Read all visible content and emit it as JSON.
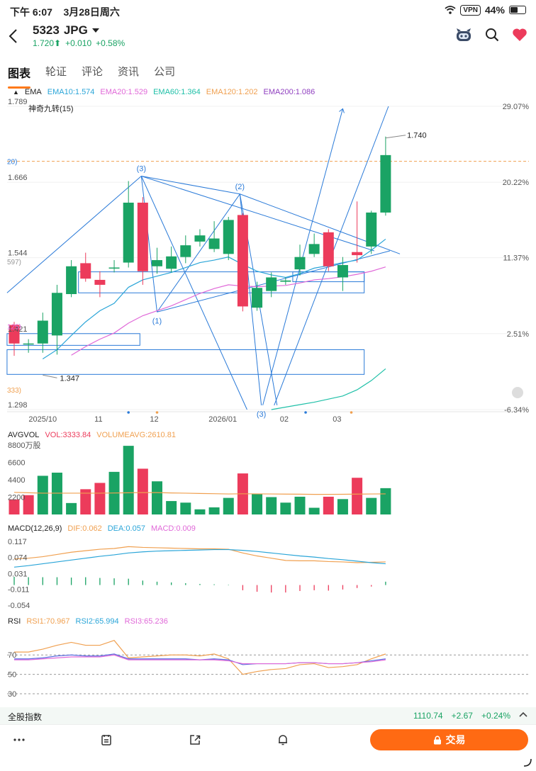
{
  "status": {
    "time": "下午 6:07",
    "date": "3月28日周六",
    "vpn": "VPN",
    "battery": "44%",
    "battery_level": 0.44
  },
  "header": {
    "symbol": "5323",
    "name": "JPG",
    "price": "1.720",
    "arrow": "⬆",
    "change": "+0.010",
    "change_pct": "+0.58%"
  },
  "tabs": [
    "图表",
    "轮证",
    "评论",
    "资讯",
    "公司"
  ],
  "ema_legend": {
    "title": "EMA",
    "items": [
      {
        "label": "EMA10:1.574",
        "color": "#2aa5d8"
      },
      {
        "label": "EMA20:1.529",
        "color": "#e068d8"
      },
      {
        "label": "EMA60:1.364",
        "color": "#20c0a8"
      },
      {
        "label": "EMA120:1.202",
        "color": "#f0a050"
      },
      {
        "label": "EMA200:1.086",
        "color": "#9040c0"
      }
    ]
  },
  "overlay_label": "神奇九转(15)",
  "colors": {
    "up": "#1aa364",
    "down": "#ec3b5b",
    "line": "#2a7ad8",
    "ema10": "#2aa5d8",
    "ema20": "#e068d8",
    "ema60": "#20c0a8",
    "vol_avg": "#f0a050",
    "dif": "#f0a050",
    "dea": "#2aa5d8",
    "macd": "#e068d8",
    "rsi1": "#f0a050",
    "rsi2": "#5a6ee0",
    "rsi3": "#e068d8"
  },
  "chart_data": [
    {
      "type": "candlestick",
      "name": "price",
      "y_ticks": [
        "1.789",
        "1.666",
        "1.544",
        "1.421",
        "1.298"
      ],
      "y_tick_values": [
        1.789,
        1.666,
        1.544,
        1.421,
        1.298
      ],
      "right_ticks": [
        "29.07%",
        "20.22%",
        "11.37%",
        "2.51%",
        "-6.34%"
      ],
      "ylim": [
        1.298,
        1.789
      ],
      "x_labels": [
        "2025/10",
        "11",
        "12",
        "2026/01",
        "02",
        "03"
      ],
      "x_label_index": [
        2.0,
        5.9,
        9.8,
        14.6,
        18.9,
        22.6
      ],
      "partial_left_labels": [
        "20)",
        "597)",
        "125)",
        "333)"
      ],
      "partial_left_values": [
        1.7,
        1.538,
        1.433,
        1.33
      ],
      "candles": [
        {
          "o": 1.435,
          "c": 1.405,
          "h": 1.44,
          "l": 1.385
        },
        {
          "o": 1.405,
          "c": 1.405,
          "h": 1.412,
          "l": 1.39
        },
        {
          "o": 1.405,
          "c": 1.442,
          "h": 1.455,
          "l": 1.39
        },
        {
          "o": 1.418,
          "c": 1.487,
          "h": 1.5,
          "l": 1.387
        },
        {
          "o": 1.485,
          "c": 1.53,
          "h": 1.54,
          "l": 1.48
        },
        {
          "o": 1.535,
          "c": 1.51,
          "h": 1.552,
          "l": 1.505
        },
        {
          "o": 1.508,
          "c": 1.5,
          "h": 1.522,
          "l": 1.48
        },
        {
          "o": 1.528,
          "c": 1.528,
          "h": 1.54,
          "l": 1.52
        },
        {
          "o": 1.536,
          "c": 1.633,
          "h": 1.668,
          "l": 1.528
        },
        {
          "o": 1.633,
          "c": 1.522,
          "h": 1.642,
          "l": 1.5
        },
        {
          "o": 1.53,
          "c": 1.54,
          "h": 1.56,
          "l": 1.518
        },
        {
          "o": 1.526,
          "c": 1.546,
          "h": 1.562,
          "l": 1.52
        },
        {
          "o": 1.545,
          "c": 1.564,
          "h": 1.58,
          "l": 1.535
        },
        {
          "o": 1.57,
          "c": 1.58,
          "h": 1.59,
          "l": 1.562
        },
        {
          "o": 1.558,
          "c": 1.575,
          "h": 1.603,
          "l": 1.553
        },
        {
          "o": 1.55,
          "c": 1.605,
          "h": 1.61,
          "l": 1.54
        },
        {
          "o": 1.613,
          "c": 1.465,
          "h": 1.616,
          "l": 1.457
        },
        {
          "o": 1.463,
          "c": 1.495,
          "h": 1.505,
          "l": 1.458
        },
        {
          "o": 1.49,
          "c": 1.512,
          "h": 1.52,
          "l": 1.48
        },
        {
          "o": 1.505,
          "c": 1.507,
          "h": 1.512,
          "l": 1.5
        },
        {
          "o": 1.525,
          "c": 1.545,
          "h": 1.565,
          "l": 1.515
        },
        {
          "o": 1.55,
          "c": 1.566,
          "h": 1.583,
          "l": 1.545
        },
        {
          "o": 1.585,
          "c": 1.53,
          "h": 1.59,
          "l": 1.522
        },
        {
          "o": 1.512,
          "c": 1.532,
          "h": 1.545,
          "l": 1.49
        },
        {
          "o": 1.553,
          "c": 1.548,
          "h": 1.635,
          "l": 1.536
        },
        {
          "o": 1.562,
          "c": 1.617,
          "h": 1.62,
          "l": 1.55
        },
        {
          "o": 1.617,
          "c": 1.71,
          "h": 1.74,
          "l": 1.612
        }
      ],
      "ema10": [
        null,
        null,
        1.38,
        1.395,
        1.418,
        1.44,
        1.458,
        1.47,
        1.496,
        1.508,
        1.514,
        1.52,
        1.528,
        1.536,
        1.54,
        1.545,
        1.533,
        1.522,
        1.516,
        1.512,
        1.518,
        1.527,
        1.531,
        1.536,
        1.54,
        1.556,
        1.574
      ],
      "ema20": [
        null,
        null,
        null,
        null,
        1.386,
        1.4,
        1.412,
        1.422,
        1.438,
        1.45,
        1.458,
        1.466,
        1.476,
        1.486,
        1.494,
        1.5,
        1.498,
        1.497,
        1.498,
        1.499,
        1.503,
        1.508,
        1.51,
        1.513,
        1.517,
        1.522,
        1.529
      ],
      "ema60": [
        null,
        null,
        null,
        null,
        null,
        null,
        null,
        null,
        null,
        null,
        null,
        null,
        null,
        null,
        null,
        null,
        null,
        null,
        1.298,
        1.302,
        1.306,
        1.31,
        1.315,
        1.32,
        1.33,
        1.345,
        1.364
      ],
      "annotations": [
        {
          "label": "(3)",
          "value": 1.676,
          "index": 8.9
        },
        {
          "label": "(2)",
          "value": 1.647,
          "index": 15.8
        },
        {
          "label": "(1)",
          "value": 1.456,
          "index": 10.0
        },
        {
          "label": "(3)",
          "value": 1.305,
          "index": 17.3
        },
        {
          "label": "1.740",
          "value": 1.74,
          "index": 27.6
        },
        {
          "label": "1.347",
          "value": 1.347,
          "index": 3.2
        }
      ],
      "reference_line": 1.7
    },
    {
      "type": "bar",
      "name": "AVGVOL",
      "legend": {
        "title": "AVGVOL",
        "vol": "VOL:3333.84",
        "avg": "VOLUMEAVG:2610.81"
      },
      "y_ticks": [
        "8800万股",
        "6600",
        "4400",
        "2200"
      ],
      "y_tick_values": [
        8800,
        6600,
        4400,
        2200
      ],
      "ylim": [
        0,
        8800
      ],
      "values": [
        1900,
        2450,
        4900,
        5300,
        1450,
        3200,
        4000,
        5400,
        8700,
        5800,
        4200,
        1700,
        1500,
        650,
        900,
        2100,
        5200,
        2600,
        2200,
        1500,
        2250,
        850,
        2250,
        1950,
        4650,
        2100,
        3334
      ],
      "up": [
        false,
        false,
        true,
        true,
        true,
        false,
        false,
        true,
        true,
        false,
        true,
        true,
        true,
        true,
        true,
        true,
        false,
        true,
        true,
        true,
        true,
        true,
        false,
        true,
        false,
        true,
        true
      ],
      "avg": [
        2800,
        2750,
        2700,
        2700,
        2700,
        2700,
        2700,
        2720,
        2750,
        2780,
        2770,
        2730,
        2700,
        2660,
        2630,
        2600,
        2620,
        2610,
        2600,
        2580,
        2570,
        2550,
        2550,
        2560,
        2580,
        2600,
        2611
      ]
    },
    {
      "type": "line",
      "name": "MACD",
      "legend": {
        "title": "MACD(12,26,9)",
        "dif": "DIF:0.062",
        "dea": "DEA:0.057",
        "macd": "MACD:0.009"
      },
      "y_ticks": [
        "0.117",
        "0.074",
        "0.031",
        "-0.011",
        "-0.054"
      ],
      "y_tick_values": [
        0.117,
        0.074,
        0.031,
        -0.011,
        -0.054
      ],
      "ylim": [
        -0.054,
        0.117
      ],
      "dif": [
        0.07,
        0.072,
        0.076,
        0.082,
        0.088,
        0.092,
        0.096,
        0.098,
        0.103,
        0.101,
        0.1,
        0.099,
        0.098,
        0.097,
        0.097,
        0.096,
        0.086,
        0.078,
        0.072,
        0.066,
        0.065,
        0.065,
        0.063,
        0.062,
        0.06,
        0.061,
        0.062
      ],
      "dea": [
        0.048,
        0.052,
        0.057,
        0.062,
        0.067,
        0.072,
        0.077,
        0.081,
        0.086,
        0.089,
        0.091,
        0.092,
        0.093,
        0.094,
        0.095,
        0.095,
        0.093,
        0.09,
        0.086,
        0.082,
        0.078,
        0.075,
        0.071,
        0.068,
        0.064,
        0.06,
        0.057
      ],
      "macd": [
        0.022,
        0.021,
        0.021,
        0.021,
        0.02,
        0.021,
        0.019,
        0.018,
        0.017,
        0.012,
        0.009,
        0.007,
        0.005,
        0.003,
        0.002,
        0.001,
        -0.014,
        -0.018,
        -0.02,
        -0.02,
        -0.016,
        -0.014,
        -0.015,
        -0.012,
        -0.008,
        -0.004,
        0.009
      ]
    },
    {
      "type": "line",
      "name": "RSI",
      "legend": {
        "title": "RSI",
        "rsi1": "RSI1:70.967",
        "rsi2": "RSI2:65.994",
        "rsi3": "RSI3:65.236"
      },
      "y_ticks": [
        "70",
        "50",
        "30"
      ],
      "y_tick_values": [
        70,
        50,
        30
      ],
      "ylim": [
        22,
        95
      ],
      "rsi1": [
        73,
        73,
        76,
        80,
        83,
        80,
        80,
        85,
        67,
        68,
        69,
        70,
        70,
        69,
        71,
        66,
        50,
        53,
        55,
        56,
        60,
        61,
        57,
        58,
        60,
        66,
        71
      ],
      "rsi2": [
        66,
        66,
        67,
        69,
        70,
        69,
        69,
        71,
        66,
        66,
        66,
        66,
        66,
        65,
        66,
        65,
        60,
        61,
        61,
        61,
        62,
        62,
        61,
        61,
        62,
        64,
        66
      ],
      "rsi3": [
        65,
        65,
        66,
        67,
        68,
        68,
        68,
        70,
        65,
        65,
        65,
        65,
        65,
        65,
        65,
        64,
        61,
        61,
        61,
        61,
        62,
        62,
        61,
        61,
        62,
        63,
        65
      ]
    }
  ],
  "index_bar": {
    "name": "全股指数",
    "value": "1110.74",
    "change": "+2.67",
    "pct": "+0.24%"
  },
  "bottom": {
    "trade_label": "交易"
  }
}
